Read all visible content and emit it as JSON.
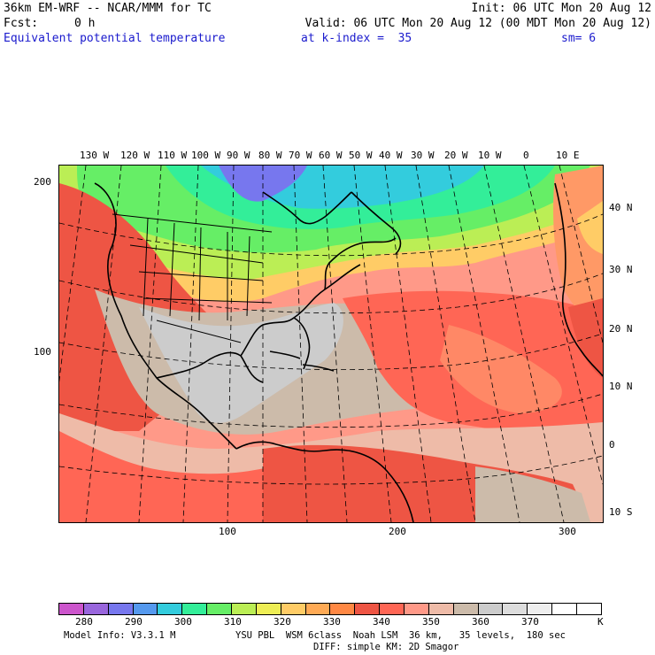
{
  "header": {
    "title": "36km EM-WRF -- NCAR/MMM for TC",
    "init": "Init: 06 UTC Mon 20 Aug 12",
    "fcst_label": "Fcst:",
    "fcst_value": "0 h",
    "valid": "Valid: 06 UTC Mon 20 Aug 12 (00 MDT Mon 20 Aug 12)",
    "field": "Equivalent potential temperature",
    "level": "at k-index =  35",
    "smoothing": "sm= 6"
  },
  "map": {
    "lon_labels": [
      "130 W",
      "120 W",
      "110 W",
      "100 W",
      "90 W",
      "80 W",
      "70 W",
      "60 W",
      "50 W",
      "40 W",
      "30 W",
      "20 W",
      "10 W",
      "0",
      "10 E"
    ],
    "lat_labels": [
      "40 N",
      "30 N",
      "20 N",
      "10 N",
      "0",
      "10 S"
    ],
    "grid_y_labels": [
      "200",
      "100"
    ],
    "grid_x_labels": [
      "100",
      "200",
      "300"
    ],
    "colors": {
      "land_outline": "#000000",
      "gridline": "#000000"
    }
  },
  "legend": {
    "labels": [
      "280",
      "290",
      "300",
      "310",
      "320",
      "330",
      "340",
      "350",
      "360",
      "370"
    ],
    "unit": "K",
    "colors": [
      "#cc55cc",
      "#9966dd",
      "#7777ee",
      "#5599ee",
      "#33ccdd",
      "#33ee99",
      "#66ee66",
      "#bbee55",
      "#eeee55",
      "#ffcc66",
      "#ffaa55",
      "#ff8844",
      "#ee5544",
      "#ff6655",
      "#ff9988",
      "#eebba8",
      "#ccbbaa",
      "#cccccc",
      "#dddddd",
      "#eeeeee",
      "#ffffff",
      "#ffffff"
    ]
  },
  "footer": {
    "model_info": "Model Info: V3.3.1 M",
    "physics": "YSU PBL  WSM 6class  Noah LSM  36 km,   35 levels,  180 sec",
    "diffusion": "DIFF: simple KM: 2D Smagor"
  }
}
